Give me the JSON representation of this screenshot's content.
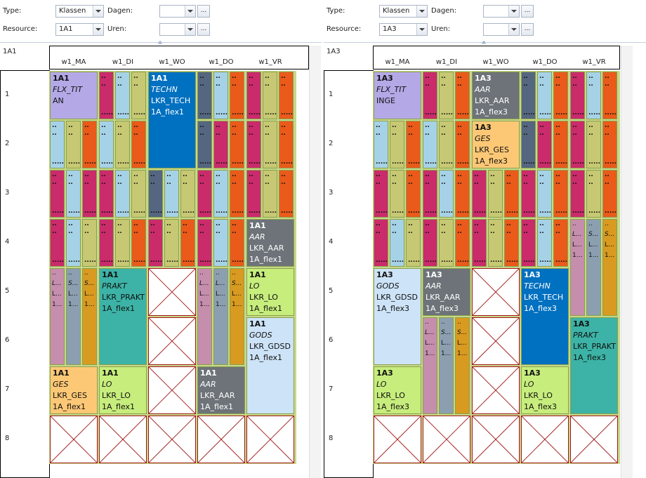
{
  "colors": {
    "purple": "#b4a9e6",
    "blue": "#0070c0",
    "teal": "#3cb3a6",
    "orange": "#fdc876",
    "lime": "#c7ed7d",
    "lightblue": "#cde3f7",
    "gray": "#6d7378",
    "magenta": "#ca2b6b",
    "lblue": "#a6d2e8",
    "olive": "#c7c873",
    "red": "#ea5a1a",
    "slate": "#556680",
    "mauve": "#c58ead",
    "steel": "#8b9fb0",
    "ochre": "#d89a20"
  },
  "panels": [
    {
      "name": "1A1",
      "filters": {
        "type_label": "Type:",
        "type_value": "Klassen",
        "dagen_label": "Dagen:",
        "resource_label": "Resource:",
        "resource_value": "1A1",
        "uren_label": "Uren:",
        "dots": "..."
      },
      "resource_name": "1A1",
      "days": [
        "w1_MA",
        "w1_DI",
        "w1_WO",
        "w1_DO",
        "w1_VR"
      ],
      "rows": [
        "1",
        "2",
        "3",
        "4",
        "5",
        "6",
        "7",
        "8"
      ],
      "cells": [
        {
          "d": 0,
          "r": 0,
          "n": 1,
          "k": "full",
          "c": "purple",
          "lines": [
            "1A1",
            "FLX_TIT",
            "AN"
          ]
        },
        {
          "d": 0,
          "r": 1,
          "n": 1,
          "k": "mini",
          "cols": [
            "lblue",
            "olive",
            "red"
          ]
        },
        {
          "d": 0,
          "r": 2,
          "n": 1,
          "k": "mini",
          "cols": [
            "magenta",
            "lblue",
            "magenta"
          ]
        },
        {
          "d": 0,
          "r": 3,
          "n": 1,
          "k": "mini",
          "cols": [
            "magenta",
            "lblue",
            "olive"
          ]
        },
        {
          "d": 0,
          "r": 4,
          "n": 2,
          "k": "lettered",
          "cols": [
            "mauve",
            "steel",
            "ochre"
          ],
          "labels": [
            [
              "..",
              "L...",
              "L...",
              "1..."
            ],
            [
              "..",
              "S...",
              "L...",
              "1..."
            ],
            [
              "..",
              "S...",
              "L...",
              "1..."
            ]
          ]
        },
        {
          "d": 0,
          "r": 6,
          "n": 1,
          "k": "full",
          "c": "orange",
          "lines": [
            "1A1",
            "GES",
            "LKR_GES",
            "1A_flex1"
          ]
        },
        {
          "d": 0,
          "r": 7,
          "n": 1,
          "k": "empty"
        },
        {
          "d": 1,
          "r": 0,
          "n": 1,
          "k": "mini",
          "cols": [
            "magenta",
            "lblue",
            "olive"
          ]
        },
        {
          "d": 1,
          "r": 1,
          "n": 1,
          "k": "mini",
          "cols": [
            "lblue",
            "olive",
            "red"
          ]
        },
        {
          "d": 1,
          "r": 2,
          "n": 1,
          "k": "mini",
          "cols": [
            "magenta",
            "lblue",
            "olive"
          ]
        },
        {
          "d": 1,
          "r": 3,
          "n": 1,
          "k": "mini",
          "cols": [
            "magenta",
            "olive",
            "red"
          ]
        },
        {
          "d": 1,
          "r": 4,
          "n": 2,
          "k": "full",
          "c": "teal",
          "lines": [
            "1A1",
            "PRAKT",
            "LKR_PRAKT",
            "1A_flex1"
          ]
        },
        {
          "d": 1,
          "r": 6,
          "n": 1,
          "k": "full",
          "c": "lime",
          "lines": [
            "1A1",
            "LO",
            "LKR_LO",
            "1A_flex1"
          ]
        },
        {
          "d": 1,
          "r": 7,
          "n": 1,
          "k": "empty"
        },
        {
          "d": 2,
          "r": 0,
          "n": 2,
          "k": "full",
          "c": "blue",
          "lines": [
            "1A1",
            "TECHN",
            "LKR_TECH",
            "1A_flex1"
          ]
        },
        {
          "d": 2,
          "r": 2,
          "n": 1,
          "k": "mini",
          "cols": [
            "slate",
            "lblue",
            "olive"
          ]
        },
        {
          "d": 2,
          "r": 3,
          "n": 1,
          "k": "mini",
          "cols": [
            "magenta",
            "olive",
            "red"
          ]
        },
        {
          "d": 2,
          "r": 4,
          "n": 1,
          "k": "empty"
        },
        {
          "d": 2,
          "r": 5,
          "n": 1,
          "k": "empty"
        },
        {
          "d": 2,
          "r": 6,
          "n": 1,
          "k": "empty"
        },
        {
          "d": 2,
          "r": 7,
          "n": 1,
          "k": "empty"
        },
        {
          "d": 3,
          "r": 0,
          "n": 1,
          "k": "mini",
          "cols": [
            "slate",
            "lblue",
            "red"
          ]
        },
        {
          "d": 3,
          "r": 1,
          "n": 1,
          "k": "mini",
          "cols": [
            "slate",
            "magenta",
            "red"
          ]
        },
        {
          "d": 3,
          "r": 2,
          "n": 1,
          "k": "mini",
          "cols": [
            "magenta",
            "lblue",
            "red"
          ]
        },
        {
          "d": 3,
          "r": 3,
          "n": 1,
          "k": "mini",
          "cols": [
            "magenta",
            "lblue",
            "red"
          ]
        },
        {
          "d": 3,
          "r": 4,
          "n": 2,
          "k": "lettered",
          "cols": [
            "mauve",
            "steel",
            "ochre"
          ],
          "labels": [
            [
              "..",
              "L...",
              "L...",
              "1..."
            ],
            [
              "..",
              "L...",
              "L...",
              "1..."
            ],
            [
              "..",
              "S...",
              "L...",
              "1..."
            ]
          ]
        },
        {
          "d": 3,
          "r": 6,
          "n": 1,
          "k": "full",
          "c": "gray",
          "lines": [
            "1A1",
            "AAR",
            "LKR_AAR",
            "1A_flex1"
          ]
        },
        {
          "d": 3,
          "r": 7,
          "n": 1,
          "k": "empty"
        },
        {
          "d": 4,
          "r": 0,
          "n": 1,
          "k": "mini",
          "cols": [
            "magenta",
            "olive",
            "red"
          ]
        },
        {
          "d": 4,
          "r": 1,
          "n": 1,
          "k": "mini",
          "cols": [
            "magenta",
            "olive",
            "red"
          ]
        },
        {
          "d": 4,
          "r": 2,
          "n": 1,
          "k": "mini",
          "cols": [
            "magenta",
            "olive",
            "red"
          ]
        },
        {
          "d": 4,
          "r": 3,
          "n": 1,
          "k": "full",
          "c": "gray",
          "lines": [
            "1A1",
            "AAR",
            "LKR_AAR",
            "1A_flex1"
          ]
        },
        {
          "d": 4,
          "r": 4,
          "n": 1,
          "k": "full",
          "c": "lime",
          "lines": [
            "1A1",
            "LO",
            "LKR_LO",
            "1A_flex1"
          ]
        },
        {
          "d": 4,
          "r": 5,
          "n": 2,
          "k": "full",
          "c": "lightblue",
          "lines": [
            "1A1",
            "GODS",
            "LKR_GDSD",
            "1A_flex1"
          ]
        },
        {
          "d": 4,
          "r": 7,
          "n": 1,
          "k": "empty"
        }
      ]
    },
    {
      "name": "1A3",
      "filters": {
        "type_label": "Type:",
        "type_value": "Klassen",
        "dagen_label": "Dagen:",
        "resource_label": "Resource:",
        "resource_value": "1A3",
        "uren_label": "Uren:",
        "dots": "..."
      },
      "resource_name": "1A3",
      "days": [
        "w1_MA",
        "w1_DI",
        "w1_WO",
        "w1_DO",
        "w1_VR"
      ],
      "rows": [
        "1",
        "2",
        "3",
        "4",
        "5",
        "6",
        "7",
        "8"
      ],
      "cells": [
        {
          "d": 0,
          "r": 0,
          "n": 1,
          "k": "full",
          "c": "purple",
          "lines": [
            "1A3",
            "FLX_TIT",
            "INGE"
          ]
        },
        {
          "d": 0,
          "r": 1,
          "n": 1,
          "k": "mini",
          "cols": [
            "lblue",
            "olive",
            "red"
          ]
        },
        {
          "d": 0,
          "r": 2,
          "n": 1,
          "k": "mini",
          "cols": [
            "magenta",
            "olive",
            "red"
          ]
        },
        {
          "d": 0,
          "r": 3,
          "n": 1,
          "k": "mini",
          "cols": [
            "magenta",
            "lblue",
            "olive"
          ]
        },
        {
          "d": 0,
          "r": 4,
          "n": 2,
          "k": "full",
          "c": "lightblue",
          "lines": [
            "1A3",
            "GODS",
            "LKR_GDSD",
            "1A_flex3"
          ]
        },
        {
          "d": 0,
          "r": 6,
          "n": 1,
          "k": "full",
          "c": "lime",
          "lines": [
            "1A3",
            "LO",
            "LKR_LO",
            "1A_flex3"
          ]
        },
        {
          "d": 0,
          "r": 7,
          "n": 1,
          "k": "empty"
        },
        {
          "d": 1,
          "r": 0,
          "n": 1,
          "k": "mini",
          "cols": [
            "magenta",
            "olive",
            "red"
          ]
        },
        {
          "d": 1,
          "r": 1,
          "n": 1,
          "k": "mini",
          "cols": [
            "lblue",
            "olive",
            "red"
          ]
        },
        {
          "d": 1,
          "r": 2,
          "n": 1,
          "k": "mini",
          "cols": [
            "magenta",
            "lblue",
            "red"
          ]
        },
        {
          "d": 1,
          "r": 3,
          "n": 1,
          "k": "mini",
          "cols": [
            "magenta",
            "olive",
            "red"
          ]
        },
        {
          "d": 1,
          "r": 4,
          "n": 1,
          "k": "full",
          "c": "gray",
          "lines": [
            "1A3",
            "AAR",
            "LKR_AAR",
            "1A_flex3"
          ]
        },
        {
          "d": 1,
          "r": 5,
          "n": 2,
          "k": "lettered",
          "cols": [
            "mauve",
            "steel",
            "ochre"
          ],
          "labels": [
            [
              "..",
              "L...",
              "L...",
              "1..."
            ],
            [
              "..",
              "S...",
              "L...",
              "1..."
            ],
            [
              "..",
              "S...",
              "L...",
              "1..."
            ]
          ]
        },
        {
          "d": 1,
          "r": 7,
          "n": 1,
          "k": "empty"
        },
        {
          "d": 2,
          "r": 0,
          "n": 1,
          "k": "full",
          "c": "gray",
          "lines": [
            "1A3",
            "AAR",
            "LKR_AAR",
            "1A_flex3"
          ]
        },
        {
          "d": 2,
          "r": 1,
          "n": 1,
          "k": "full",
          "c": "orange",
          "lines": [
            "1A3",
            "GES",
            "LKR_GES",
            "1A_flex3"
          ]
        },
        {
          "d": 2,
          "r": 2,
          "n": 1,
          "k": "mini",
          "cols": [
            "magenta",
            "olive",
            "red"
          ]
        },
        {
          "d": 2,
          "r": 3,
          "n": 1,
          "k": "mini",
          "cols": [
            "magenta",
            "olive",
            "red"
          ]
        },
        {
          "d": 2,
          "r": 4,
          "n": 1,
          "k": "empty"
        },
        {
          "d": 2,
          "r": 5,
          "n": 1,
          "k": "empty"
        },
        {
          "d": 2,
          "r": 6,
          "n": 1,
          "k": "empty"
        },
        {
          "d": 2,
          "r": 7,
          "n": 1,
          "k": "empty"
        },
        {
          "d": 3,
          "r": 0,
          "n": 1,
          "k": "mini",
          "cols": [
            "slate",
            "lblue",
            "red"
          ]
        },
        {
          "d": 3,
          "r": 1,
          "n": 1,
          "k": "mini",
          "cols": [
            "slate",
            "magenta",
            "red"
          ]
        },
        {
          "d": 3,
          "r": 2,
          "n": 1,
          "k": "mini",
          "cols": [
            "magenta",
            "lblue",
            "red"
          ]
        },
        {
          "d": 3,
          "r": 3,
          "n": 1,
          "k": "mini",
          "cols": [
            "magenta",
            "lblue",
            "red"
          ]
        },
        {
          "d": 3,
          "r": 4,
          "n": 2,
          "k": "full",
          "c": "blue",
          "lines": [
            "1A3",
            "TECHN",
            "LKR_TECH",
            "1A_flex3"
          ]
        },
        {
          "d": 3,
          "r": 6,
          "n": 1,
          "k": "full",
          "c": "lime",
          "lines": [
            "1A3",
            "LO",
            "LKR_LO",
            "1A_flex3"
          ]
        },
        {
          "d": 3,
          "r": 7,
          "n": 1,
          "k": "empty"
        },
        {
          "d": 4,
          "r": 0,
          "n": 1,
          "k": "mini",
          "cols": [
            "magenta",
            "lblue",
            "red"
          ]
        },
        {
          "d": 4,
          "r": 1,
          "n": 1,
          "k": "mini",
          "cols": [
            "magenta",
            "olive",
            "red"
          ]
        },
        {
          "d": 4,
          "r": 2,
          "n": 1,
          "k": "mini",
          "cols": [
            "magenta",
            "olive",
            "red"
          ]
        },
        {
          "d": 4,
          "r": 3,
          "n": 2,
          "k": "lettered",
          "cols": [
            "mauve",
            "steel",
            "ochre"
          ],
          "labels": [
            [
              "..",
              "L...",
              "L...",
              "1..."
            ],
            [
              "..",
              "S...",
              "L...",
              "1..."
            ],
            [
              "..",
              "S...",
              "L...",
              "1..."
            ]
          ]
        },
        {
          "d": 4,
          "r": 5,
          "n": 2,
          "k": "full",
          "c": "teal",
          "lines": [
            "1A3",
            "PRAKT",
            "LKR_PRAKT",
            "1A_flex3"
          ]
        },
        {
          "d": 4,
          "r": 7,
          "n": 1,
          "k": "empty"
        }
      ]
    }
  ]
}
